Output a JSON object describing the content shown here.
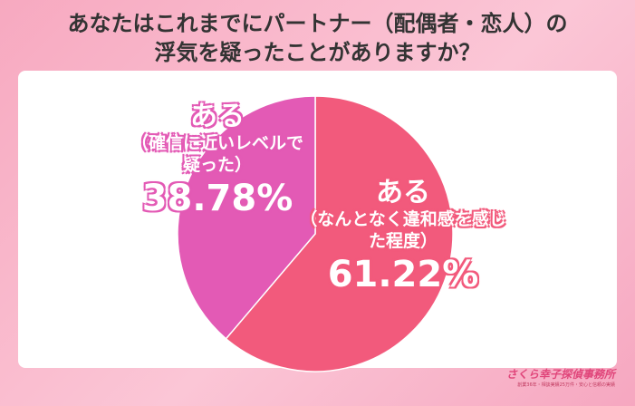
{
  "chart_data": {
    "type": "pie",
    "title": [
      "あなたはこれまでにパートナー（配偶者・恋人）の",
      "浮気を疑ったことがありますか？"
    ],
    "categories": [
      "ある",
      "ある"
    ],
    "category_notes": [
      "（なんとなく違和感を感じた程度）",
      "（確信に近いレベルで疑った）"
    ],
    "values": [
      61.22,
      38.78
    ],
    "value_labels": [
      "61.22%",
      "38.78%"
    ],
    "colors": [
      "#f25a7c",
      "#e35ab5"
    ],
    "logo": "さくら幸子探偵事務所",
    "logo_sub": "創業36年・相談実績25万件・安心と信頼の実績"
  }
}
